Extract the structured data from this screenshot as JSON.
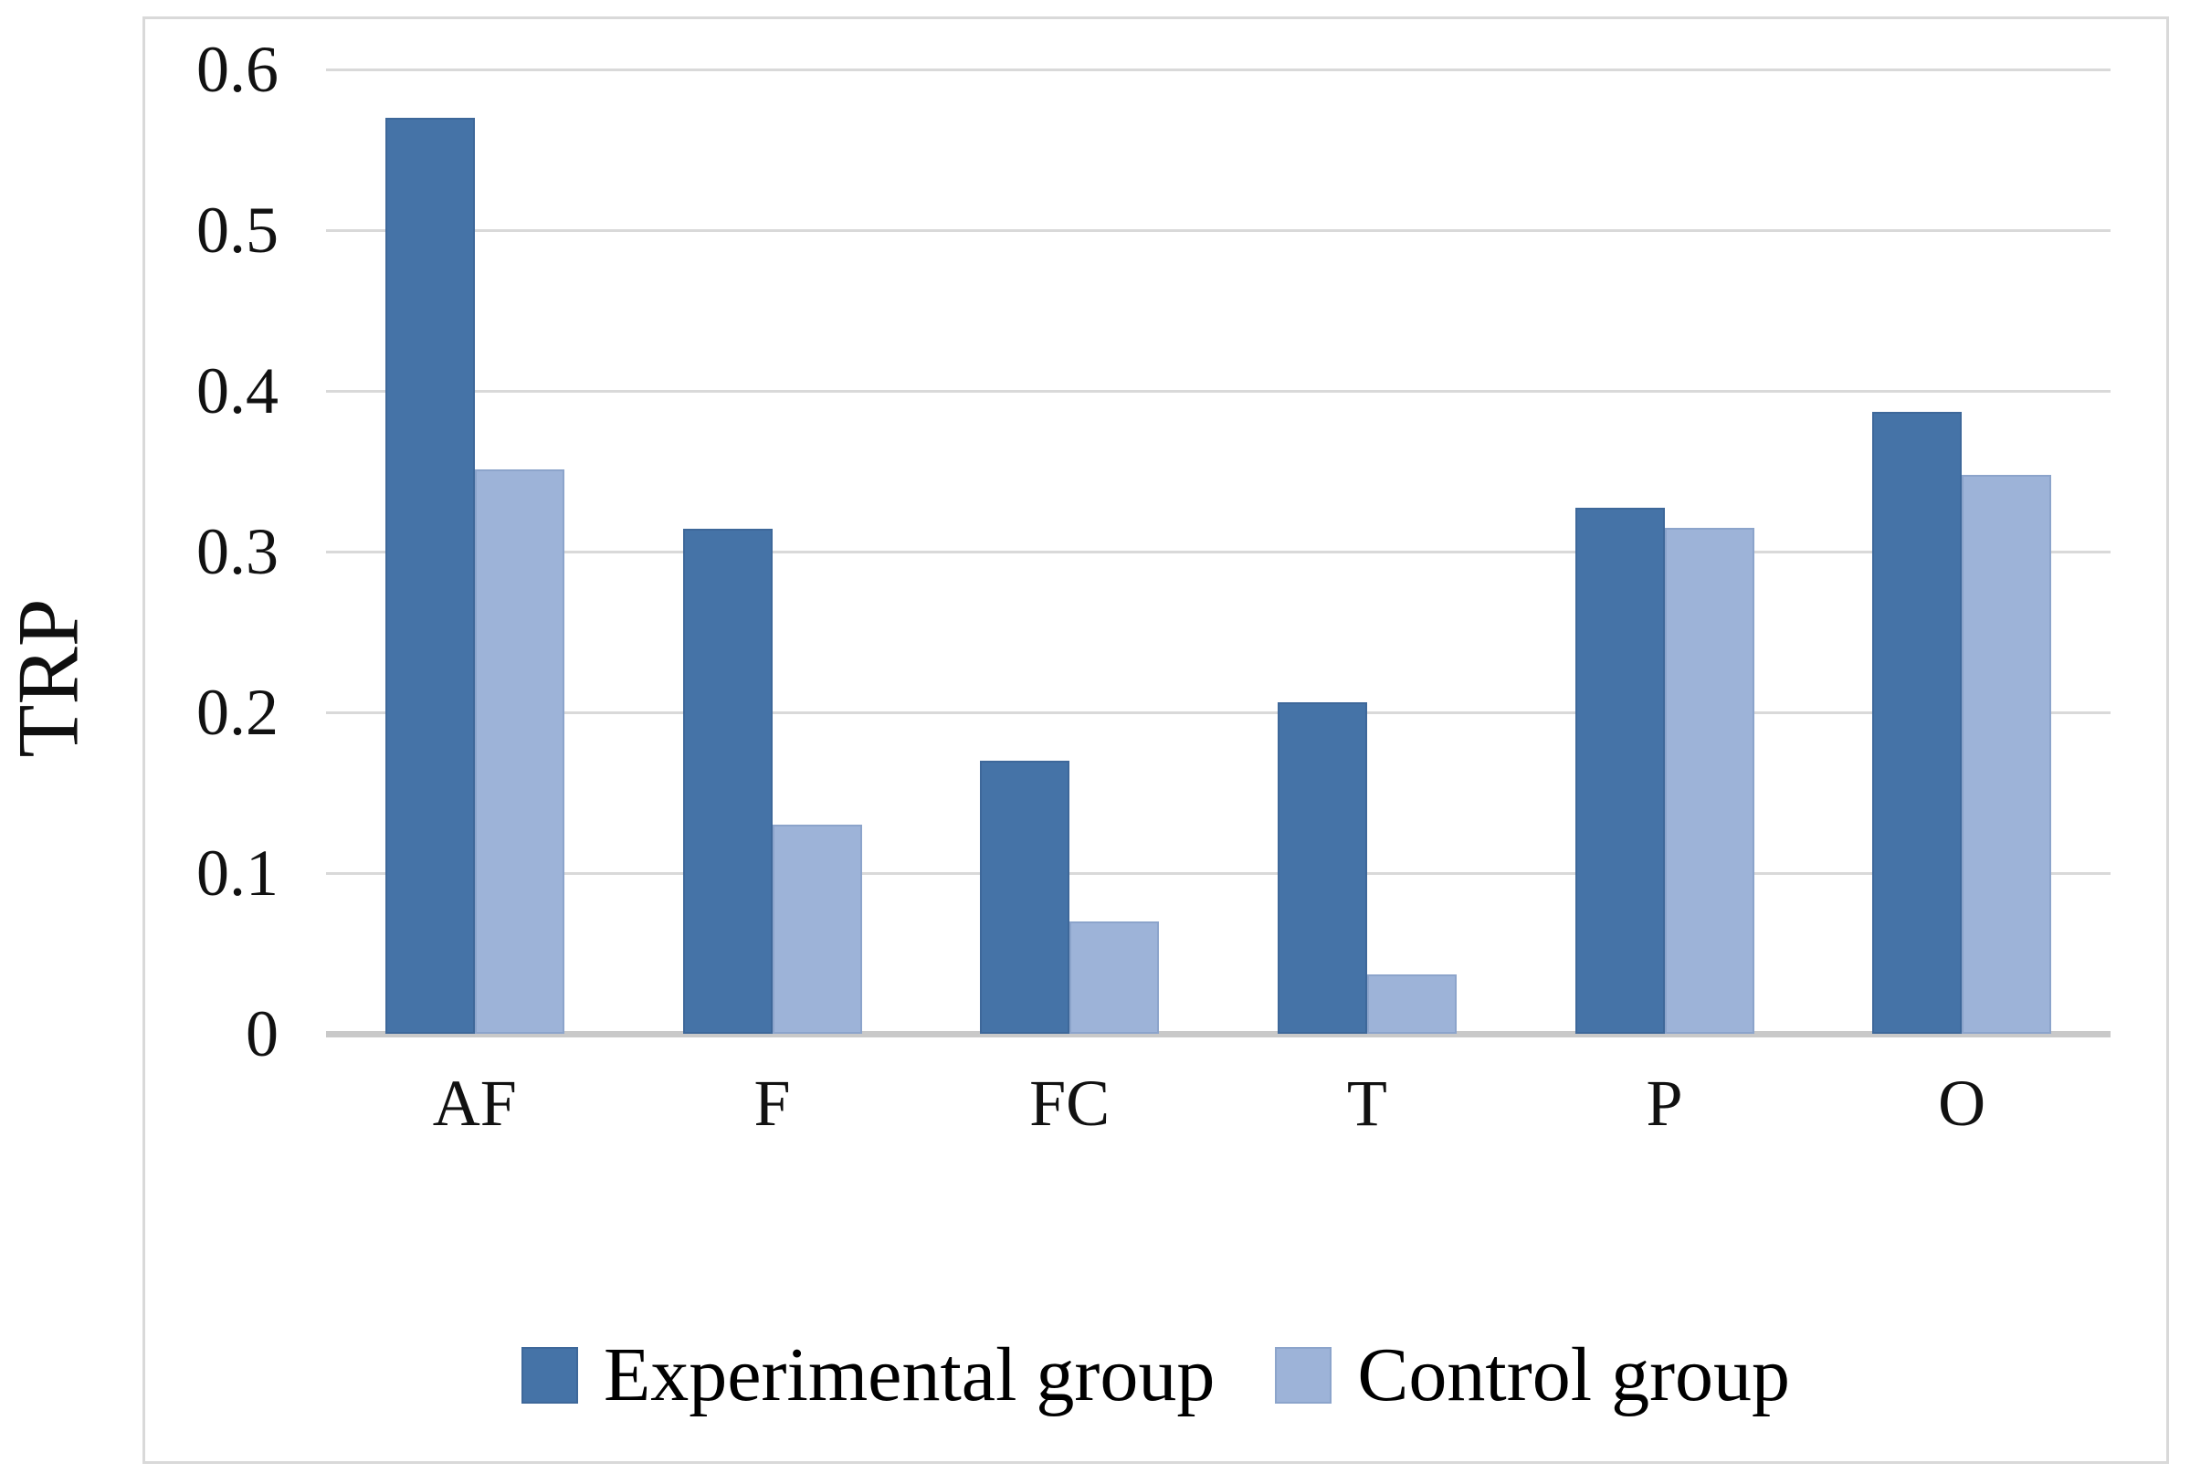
{
  "chart_data": {
    "type": "bar",
    "title": "",
    "xlabel": "",
    "ylabel": "TRP",
    "categories": [
      "AF",
      "F",
      "FC",
      "T",
      "P",
      "O"
    ],
    "series": [
      {
        "name": "Experimental group",
        "color": "#4573a7",
        "border_color": "#3e689a",
        "values": [
          0.57,
          0.314,
          0.17,
          0.206,
          0.327,
          0.387
        ]
      },
      {
        "name": "Control group",
        "color": "#9db3d8",
        "border_color": "#8ca4cb",
        "values": [
          0.351,
          0.13,
          0.07,
          0.037,
          0.315,
          0.348
        ]
      }
    ],
    "y_ticks": [
      "0.6",
      "0.5",
      "0.4",
      "0.3",
      "0.2",
      "0.1",
      "0"
    ],
    "y_tick_values": [
      0.6,
      0.5,
      0.4,
      0.3,
      0.2,
      0.1,
      0
    ],
    "ylim": [
      0,
      0.6
    ],
    "grid": true,
    "gridline_color": "#d9d9d9",
    "axis_line_color": "#c9c9c9",
    "legend_position": "bottom"
  }
}
